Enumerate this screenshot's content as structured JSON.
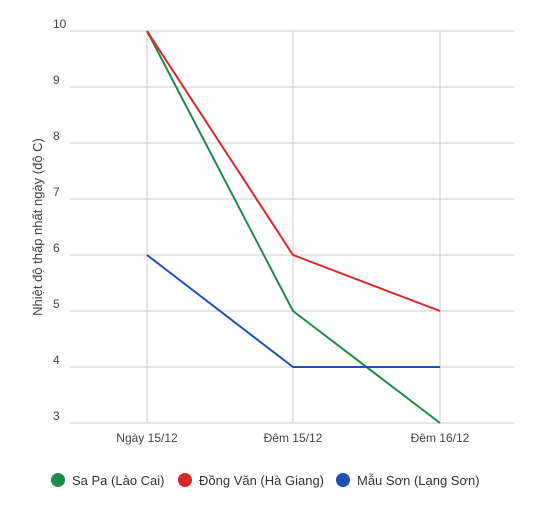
{
  "chart_data": {
    "type": "line",
    "title": "",
    "xlabel": "",
    "ylabel": "Nhiệt độ thấp nhất ngày (độ C)",
    "categories": [
      "Ngày 15/12",
      "Đêm 15/12",
      "Đêm 16/12"
    ],
    "ylim": [
      3,
      10
    ],
    "yticks": [
      3,
      4,
      5,
      6,
      7,
      8,
      9,
      10
    ],
    "grid": true,
    "legend_position": "bottom",
    "series": [
      {
        "name": "Sa Pa (Lào Cai)",
        "color": "#1e8b4c",
        "values": [
          10,
          5,
          3
        ]
      },
      {
        "name": "Đồng Văn (Hà Giang)",
        "color": "#d8262b",
        "values": [
          10,
          6,
          5
        ]
      },
      {
        "name": "Mẫu Sơn (Lạng Sơn)",
        "color": "#1f4fb5",
        "values": [
          6,
          4,
          4
        ]
      }
    ]
  }
}
